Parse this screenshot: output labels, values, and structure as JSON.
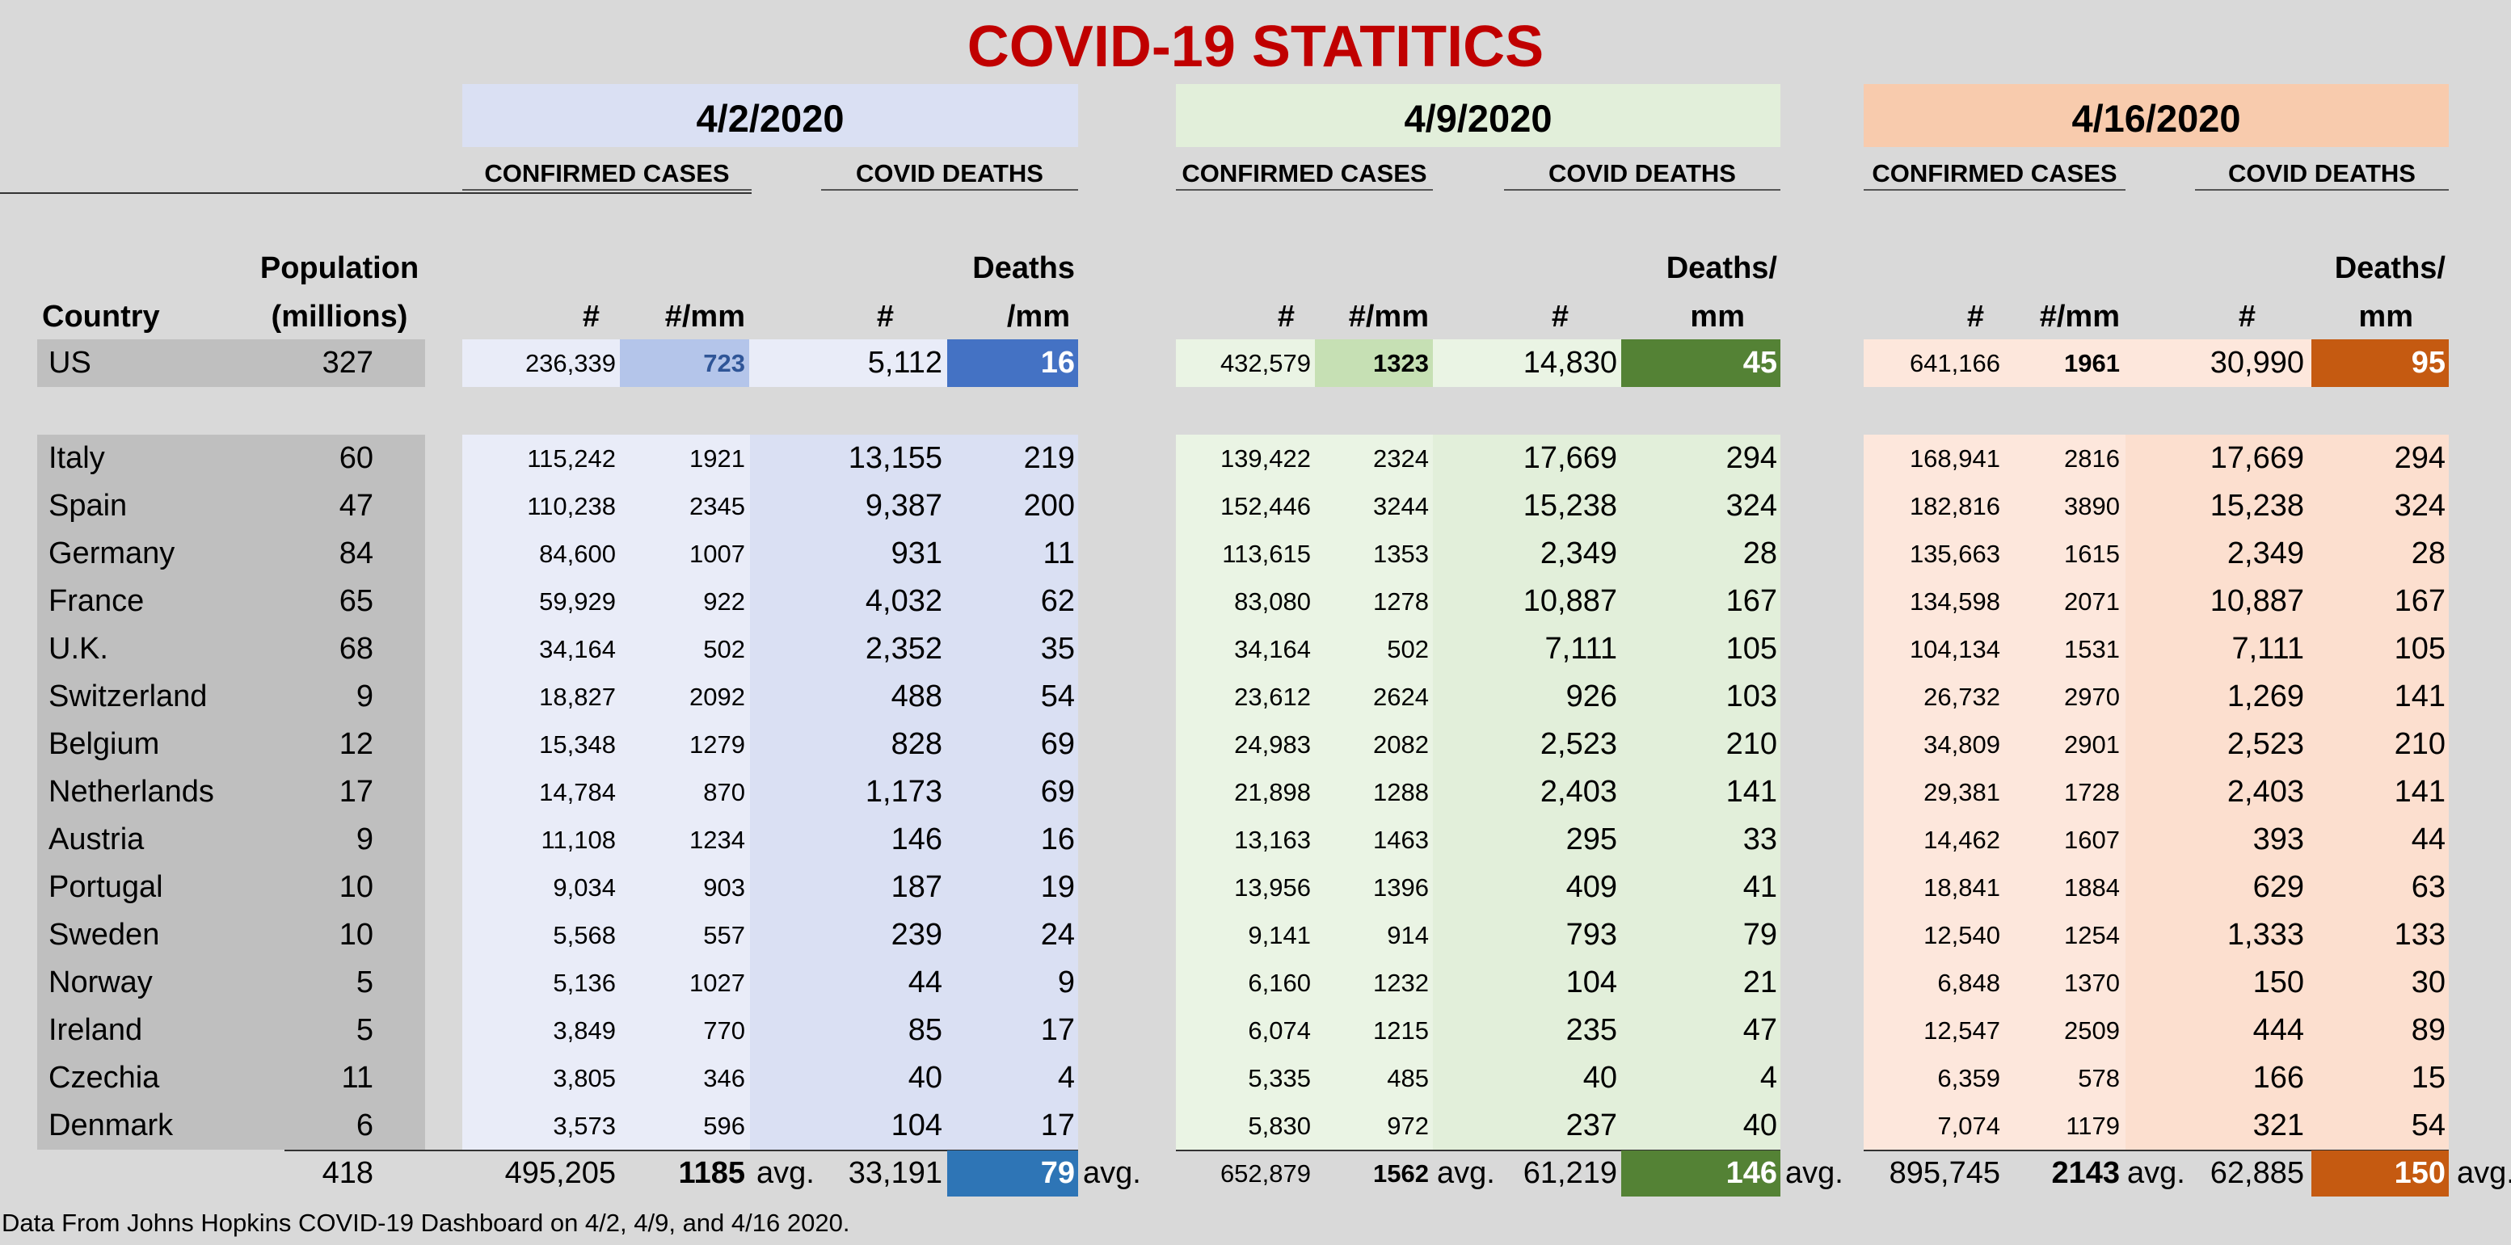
{
  "title": "COVID-19 STATITICS",
  "footnote": "Data From Johns Hopkins COVID-19 Dashboard on 4/2, 4/9, and 4/16 2020.",
  "headers": {
    "country": "Country",
    "population_line1": "Population",
    "population_line2": "(millions)",
    "confirmed_cases": "CONFIRMED CASES",
    "covid_deaths": "COVID DEATHS",
    "hash": "#",
    "per_mm": "#/mm",
    "deaths_mm_1_a": "Deaths",
    "deaths_mm_1_b": "/mm",
    "deaths_mm_2_a": "Deaths/",
    "deaths_mm_2_b": "mm",
    "avg": "avg."
  },
  "colors": {
    "period1_light": "#e9ecf8",
    "period1_mid": "#dae0f3",
    "period1_accent": "#b4c5ea",
    "period1_strong": "#4472c4",
    "period1_total": "#2e75b6",
    "period2_light": "#eaf4e4",
    "period2_mid": "#e2efda",
    "period2_accent": "#c6e0b4",
    "period2_strong": "#548235",
    "period3_light": "#fde7dc",
    "period3_mid": "#fcdfcf",
    "period3_band": "#f8cbad",
    "period3_strong": "#c55a11",
    "country_bg": "#bfbfbf",
    "title": "#c00000"
  },
  "periods": [
    {
      "date": "4/2/2020",
      "us": {
        "cases": "236,339",
        "per_mm": "723",
        "deaths": "5,112",
        "deaths_mm": "16"
      },
      "rows": [
        {
          "cases": "115,242",
          "per_mm": "1921",
          "deaths": "13,155",
          "deaths_mm": "219"
        },
        {
          "cases": "110,238",
          "per_mm": "2345",
          "deaths": "9,387",
          "deaths_mm": "200"
        },
        {
          "cases": "84,600",
          "per_mm": "1007",
          "deaths": "931",
          "deaths_mm": "11"
        },
        {
          "cases": "59,929",
          "per_mm": "922",
          "deaths": "4,032",
          "deaths_mm": "62"
        },
        {
          "cases": "34,164",
          "per_mm": "502",
          "deaths": "2,352",
          "deaths_mm": "35"
        },
        {
          "cases": "18,827",
          "per_mm": "2092",
          "deaths": "488",
          "deaths_mm": "54"
        },
        {
          "cases": "15,348",
          "per_mm": "1279",
          "deaths": "828",
          "deaths_mm": "69"
        },
        {
          "cases": "14,784",
          "per_mm": "870",
          "deaths": "1,173",
          "deaths_mm": "69"
        },
        {
          "cases": "11,108",
          "per_mm": "1234",
          "deaths": "146",
          "deaths_mm": "16"
        },
        {
          "cases": "9,034",
          "per_mm": "903",
          "deaths": "187",
          "deaths_mm": "19"
        },
        {
          "cases": "5,568",
          "per_mm": "557",
          "deaths": "239",
          "deaths_mm": "24"
        },
        {
          "cases": "5,136",
          "per_mm": "1027",
          "deaths": "44",
          "deaths_mm": "9"
        },
        {
          "cases": "3,849",
          "per_mm": "770",
          "deaths": "85",
          "deaths_mm": "17"
        },
        {
          "cases": "3,805",
          "per_mm": "346",
          "deaths": "40",
          "deaths_mm": "4"
        },
        {
          "cases": "3,573",
          "per_mm": "596",
          "deaths": "104",
          "deaths_mm": "17"
        }
      ],
      "totals": {
        "cases": "495,205",
        "per_mm": "1185",
        "deaths": "33,191",
        "deaths_mm": "79"
      }
    },
    {
      "date": "4/9/2020",
      "us": {
        "cases": "432,579",
        "per_mm": "1323",
        "deaths": "14,830",
        "deaths_mm": "45"
      },
      "rows": [
        {
          "cases": "139,422",
          "per_mm": "2324",
          "deaths": "17,669",
          "deaths_mm": "294"
        },
        {
          "cases": "152,446",
          "per_mm": "3244",
          "deaths": "15,238",
          "deaths_mm": "324"
        },
        {
          "cases": "113,615",
          "per_mm": "1353",
          "deaths": "2,349",
          "deaths_mm": "28"
        },
        {
          "cases": "83,080",
          "per_mm": "1278",
          "deaths": "10,887",
          "deaths_mm": "167"
        },
        {
          "cases": "34,164",
          "per_mm": "502",
          "deaths": "7,111",
          "deaths_mm": "105"
        },
        {
          "cases": "23,612",
          "per_mm": "2624",
          "deaths": "926",
          "deaths_mm": "103"
        },
        {
          "cases": "24,983",
          "per_mm": "2082",
          "deaths": "2,523",
          "deaths_mm": "210"
        },
        {
          "cases": "21,898",
          "per_mm": "1288",
          "deaths": "2,403",
          "deaths_mm": "141"
        },
        {
          "cases": "13,163",
          "per_mm": "1463",
          "deaths": "295",
          "deaths_mm": "33"
        },
        {
          "cases": "13,956",
          "per_mm": "1396",
          "deaths": "409",
          "deaths_mm": "41"
        },
        {
          "cases": "9,141",
          "per_mm": "914",
          "deaths": "793",
          "deaths_mm": "79"
        },
        {
          "cases": "6,160",
          "per_mm": "1232",
          "deaths": "104",
          "deaths_mm": "21"
        },
        {
          "cases": "6,074",
          "per_mm": "1215",
          "deaths": "235",
          "deaths_mm": "47"
        },
        {
          "cases": "5,335",
          "per_mm": "485",
          "deaths": "40",
          "deaths_mm": "4"
        },
        {
          "cases": "5,830",
          "per_mm": "972",
          "deaths": "237",
          "deaths_mm": "40"
        }
      ],
      "totals": {
        "cases": "652,879",
        "per_mm": "1562",
        "deaths": "61,219",
        "deaths_mm": "146"
      }
    },
    {
      "date": "4/16/2020",
      "us": {
        "cases": "641,166",
        "per_mm": "1961",
        "deaths": "30,990",
        "deaths_mm": "95"
      },
      "rows": [
        {
          "cases": "168,941",
          "per_mm": "2816",
          "deaths": "17,669",
          "deaths_mm": "294"
        },
        {
          "cases": "182,816",
          "per_mm": "3890",
          "deaths": "15,238",
          "deaths_mm": "324"
        },
        {
          "cases": "135,663",
          "per_mm": "1615",
          "deaths": "2,349",
          "deaths_mm": "28"
        },
        {
          "cases": "134,598",
          "per_mm": "2071",
          "deaths": "10,887",
          "deaths_mm": "167"
        },
        {
          "cases": "104,134",
          "per_mm": "1531",
          "deaths": "7,111",
          "deaths_mm": "105"
        },
        {
          "cases": "26,732",
          "per_mm": "2970",
          "deaths": "1,269",
          "deaths_mm": "141"
        },
        {
          "cases": "34,809",
          "per_mm": "2901",
          "deaths": "2,523",
          "deaths_mm": "210"
        },
        {
          "cases": "29,381",
          "per_mm": "1728",
          "deaths": "2,403",
          "deaths_mm": "141"
        },
        {
          "cases": "14,462",
          "per_mm": "1607",
          "deaths": "393",
          "deaths_mm": "44"
        },
        {
          "cases": "18,841",
          "per_mm": "1884",
          "deaths": "629",
          "deaths_mm": "63"
        },
        {
          "cases": "12,540",
          "per_mm": "1254",
          "deaths": "1,333",
          "deaths_mm": "133"
        },
        {
          "cases": "6,848",
          "per_mm": "1370",
          "deaths": "150",
          "deaths_mm": "30"
        },
        {
          "cases": "12,547",
          "per_mm": "2509",
          "deaths": "444",
          "deaths_mm": "89"
        },
        {
          "cases": "6,359",
          "per_mm": "578",
          "deaths": "166",
          "deaths_mm": "15"
        },
        {
          "cases": "7,074",
          "per_mm": "1179",
          "deaths": "321",
          "deaths_mm": "54"
        }
      ],
      "totals": {
        "cases": "895,745",
        "per_mm": "2143",
        "deaths": "62,885",
        "deaths_mm": "150"
      }
    }
  ],
  "us_row": {
    "country": "US",
    "population": "327"
  },
  "countries": [
    {
      "name": "Italy",
      "population": "60"
    },
    {
      "name": "Spain",
      "population": "47"
    },
    {
      "name": "Germany",
      "population": "84"
    },
    {
      "name": "France",
      "population": "65"
    },
    {
      "name": "U.K.",
      "population": "68"
    },
    {
      "name": "Switzerland",
      "population": "9"
    },
    {
      "name": "Belgium",
      "population": "12"
    },
    {
      "name": "Netherlands",
      "population": "17"
    },
    {
      "name": "Austria",
      "population": "9"
    },
    {
      "name": "Portugal",
      "population": "10"
    },
    {
      "name": "Sweden",
      "population": "10"
    },
    {
      "name": "Norway",
      "population": "5"
    },
    {
      "name": "Ireland",
      "population": "5"
    },
    {
      "name": "Czechia",
      "population": "11"
    },
    {
      "name": "Denmark",
      "population": "6"
    }
  ],
  "population_total": "418"
}
